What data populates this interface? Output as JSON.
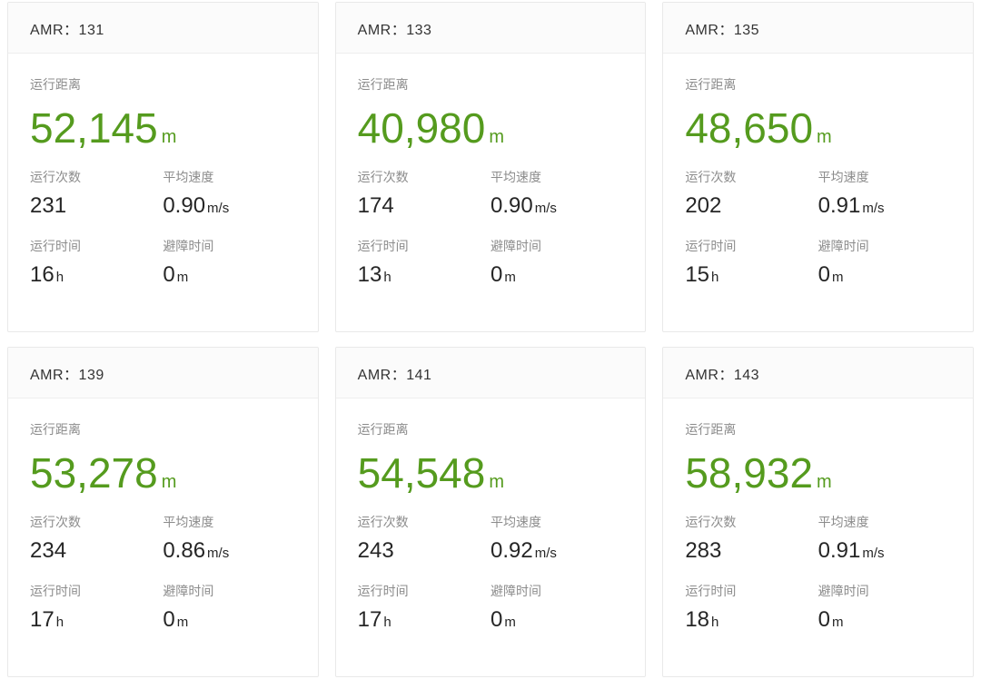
{
  "theme": {
    "accent_green": "#559b1e",
    "label_gray": "#8c8c8c",
    "value_dark": "#262626"
  },
  "labels": {
    "distance": "运行距离",
    "count": "运行次数",
    "avg_speed": "平均速度",
    "run_time": "运行时间",
    "avoid_time": "避障时间"
  },
  "cards": [
    {
      "title": "AMR：131",
      "distance_value": "52,145",
      "distance_unit": "m",
      "count": "231",
      "avg_speed_value": "0.90",
      "avg_speed_unit": "m/s",
      "run_time_value": "16",
      "run_time_unit": "h",
      "avoid_time_value": "0",
      "avoid_time_unit": "m"
    },
    {
      "title": "AMR：133",
      "distance_value": "40,980",
      "distance_unit": "m",
      "count": "174",
      "avg_speed_value": "0.90",
      "avg_speed_unit": "m/s",
      "run_time_value": "13",
      "run_time_unit": "h",
      "avoid_time_value": "0",
      "avoid_time_unit": "m"
    },
    {
      "title": "AMR：135",
      "distance_value": "48,650",
      "distance_unit": "m",
      "count": "202",
      "avg_speed_value": "0.91",
      "avg_speed_unit": "m/s",
      "run_time_value": "15",
      "run_time_unit": "h",
      "avoid_time_value": "0",
      "avoid_time_unit": "m"
    },
    {
      "title": "AMR：139",
      "distance_value": "53,278",
      "distance_unit": "m",
      "count": "234",
      "avg_speed_value": "0.86",
      "avg_speed_unit": "m/s",
      "run_time_value": "17",
      "run_time_unit": "h",
      "avoid_time_value": "0",
      "avoid_time_unit": "m"
    },
    {
      "title": "AMR：141",
      "distance_value": "54,548",
      "distance_unit": "m",
      "count": "243",
      "avg_speed_value": "0.92",
      "avg_speed_unit": "m/s",
      "run_time_value": "17",
      "run_time_unit": "h",
      "avoid_time_value": "0",
      "avoid_time_unit": "m"
    },
    {
      "title": "AMR：143",
      "distance_value": "58,932",
      "distance_unit": "m",
      "count": "283",
      "avg_speed_value": "0.91",
      "avg_speed_unit": "m/s",
      "run_time_value": "18",
      "run_time_unit": "h",
      "avoid_time_value": "0",
      "avoid_time_unit": "m"
    }
  ]
}
